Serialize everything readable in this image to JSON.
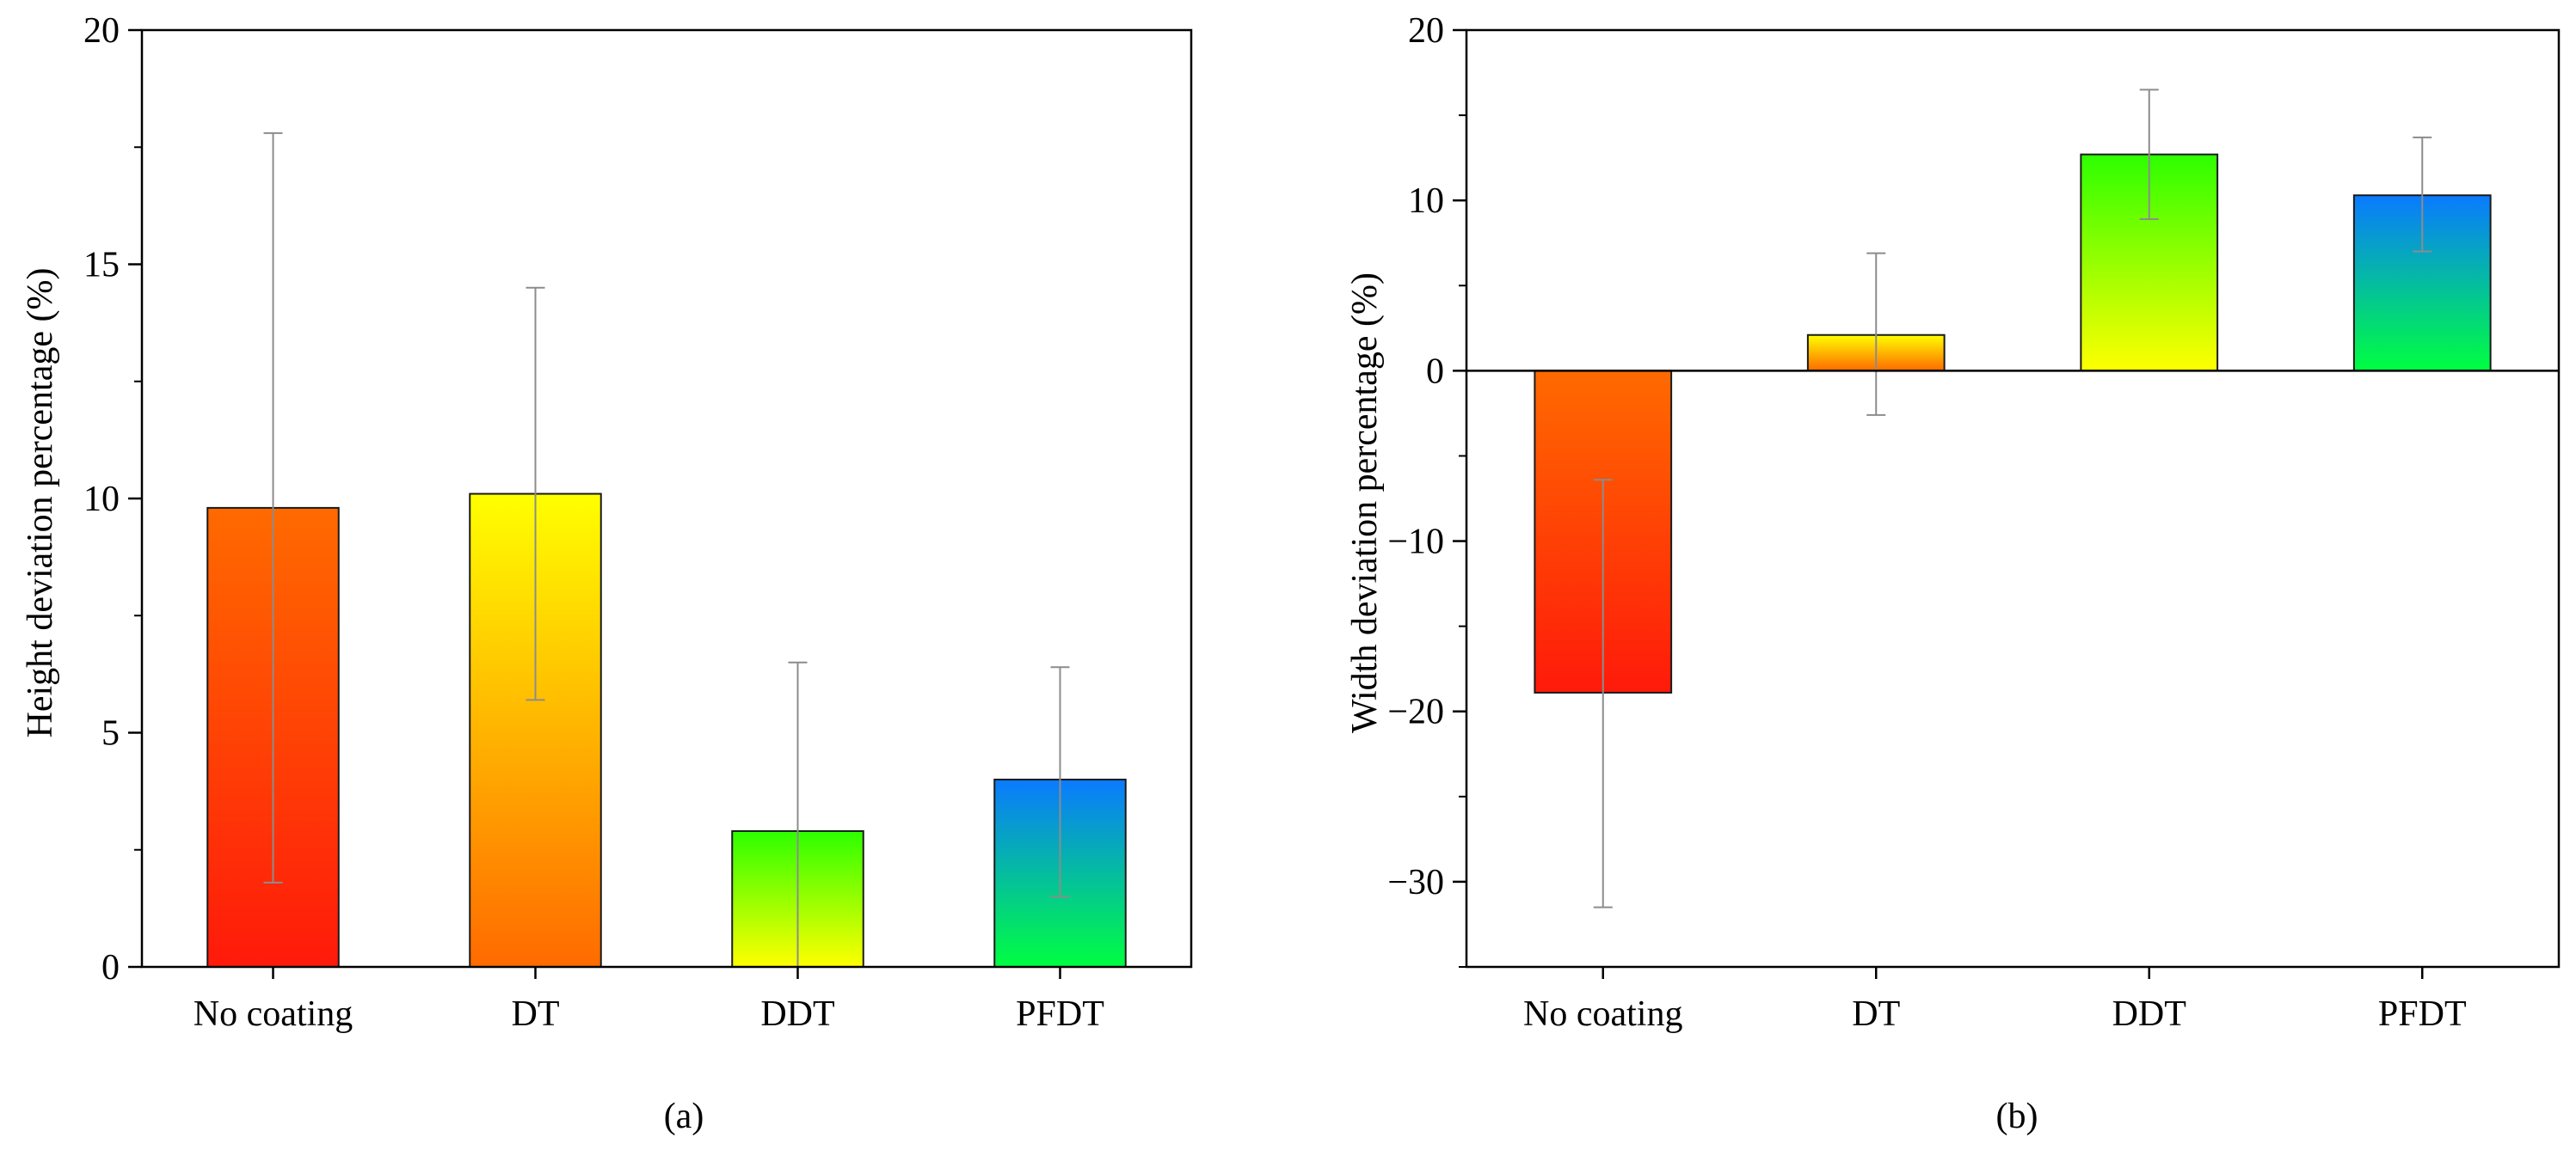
{
  "chart_data": [
    {
      "panel": "(a)",
      "type": "bar",
      "ylabel": "Height deviation percentage (%)",
      "xlabel": "",
      "categories": [
        "No coating",
        "DT",
        "DDT",
        "PFDT"
      ],
      "values": [
        9.8,
        10.1,
        2.9,
        4.0
      ],
      "error_low": [
        1.8,
        5.7,
        0.0,
        1.5
      ],
      "error_high": [
        17.8,
        14.5,
        6.5,
        6.4
      ],
      "ylim": [
        0,
        20
      ],
      "yticks": [
        0,
        5,
        10,
        15,
        20
      ],
      "ytick_labels": [
        "0",
        "5",
        "10",
        "15",
        "20"
      ],
      "gradients": [
        [
          "#ff1a0a",
          "#ff6a00"
        ],
        [
          "#ff6a00",
          "#ffff00"
        ],
        [
          "#ffff00",
          "#2dff00"
        ],
        [
          "#00ff40",
          "#0a7aff"
        ]
      ]
    },
    {
      "panel": "(b)",
      "type": "bar",
      "ylabel": "Width deviation percentage (%)",
      "xlabel": "",
      "categories": [
        "No coating",
        "DT",
        "DDT",
        "PFDT"
      ],
      "values": [
        -18.9,
        2.1,
        12.7,
        10.3
      ],
      "error_low": [
        -31.5,
        -2.6,
        8.9,
        7.0
      ],
      "error_high": [
        -6.4,
        6.9,
        16.5,
        13.7
      ],
      "ylim": [
        -35,
        20
      ],
      "yticks": [
        -30,
        -20,
        -10,
        0,
        10,
        20
      ],
      "ytick_labels": [
        "−30",
        "−20",
        "−10",
        "0",
        "10",
        "20"
      ],
      "gradients": [
        [
          "#ff1a0a",
          "#ff6a00"
        ],
        [
          "#ff6a00",
          "#ffff00"
        ],
        [
          "#ffff00",
          "#2dff00"
        ],
        [
          "#00ff40",
          "#0a7aff"
        ]
      ]
    }
  ]
}
